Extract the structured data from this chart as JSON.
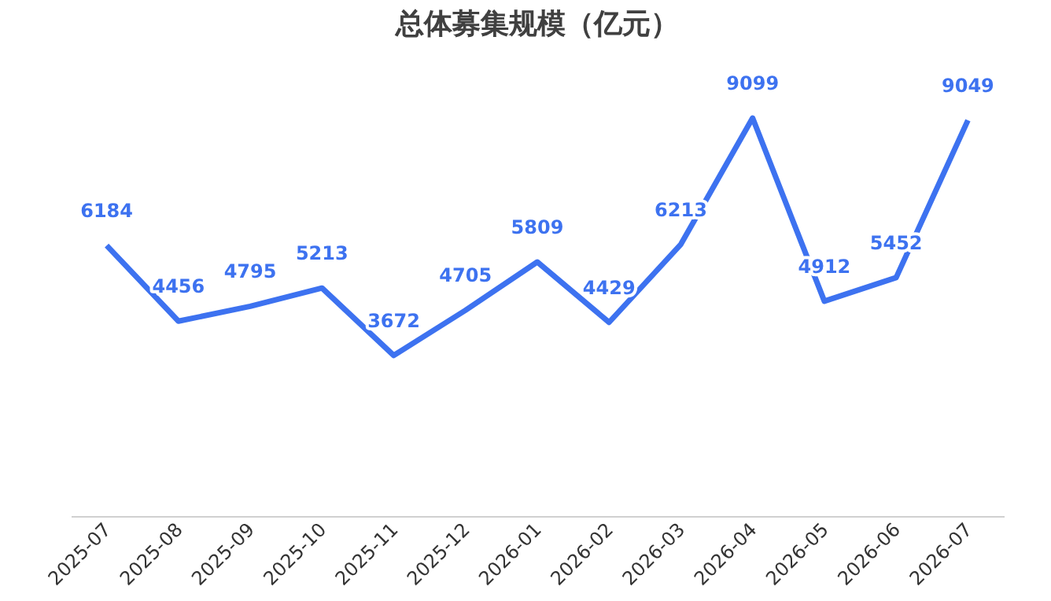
{
  "chart_data": {
    "type": "line",
    "title": "总体募集规模（亿元）",
    "categories": [
      "2025-07",
      "2025-08",
      "2025-09",
      "2025-10",
      "2025-11",
      "2025-12",
      "2026-01",
      "2026-02",
      "2026-03",
      "2026-04",
      "2026-05",
      "2026-06",
      "2026-07"
    ],
    "series": [
      {
        "color": "#3d72f0",
        "values": [
          6184,
          4456,
          4795,
          5213,
          3672,
          4705,
          5809,
          4429,
          6213,
          9099,
          4912,
          5452,
          9049
        ]
      }
    ],
    "data_labels": true,
    "grid": false,
    "tick_labels": "x",
    "marker": "none",
    "line_style": "solid"
  }
}
